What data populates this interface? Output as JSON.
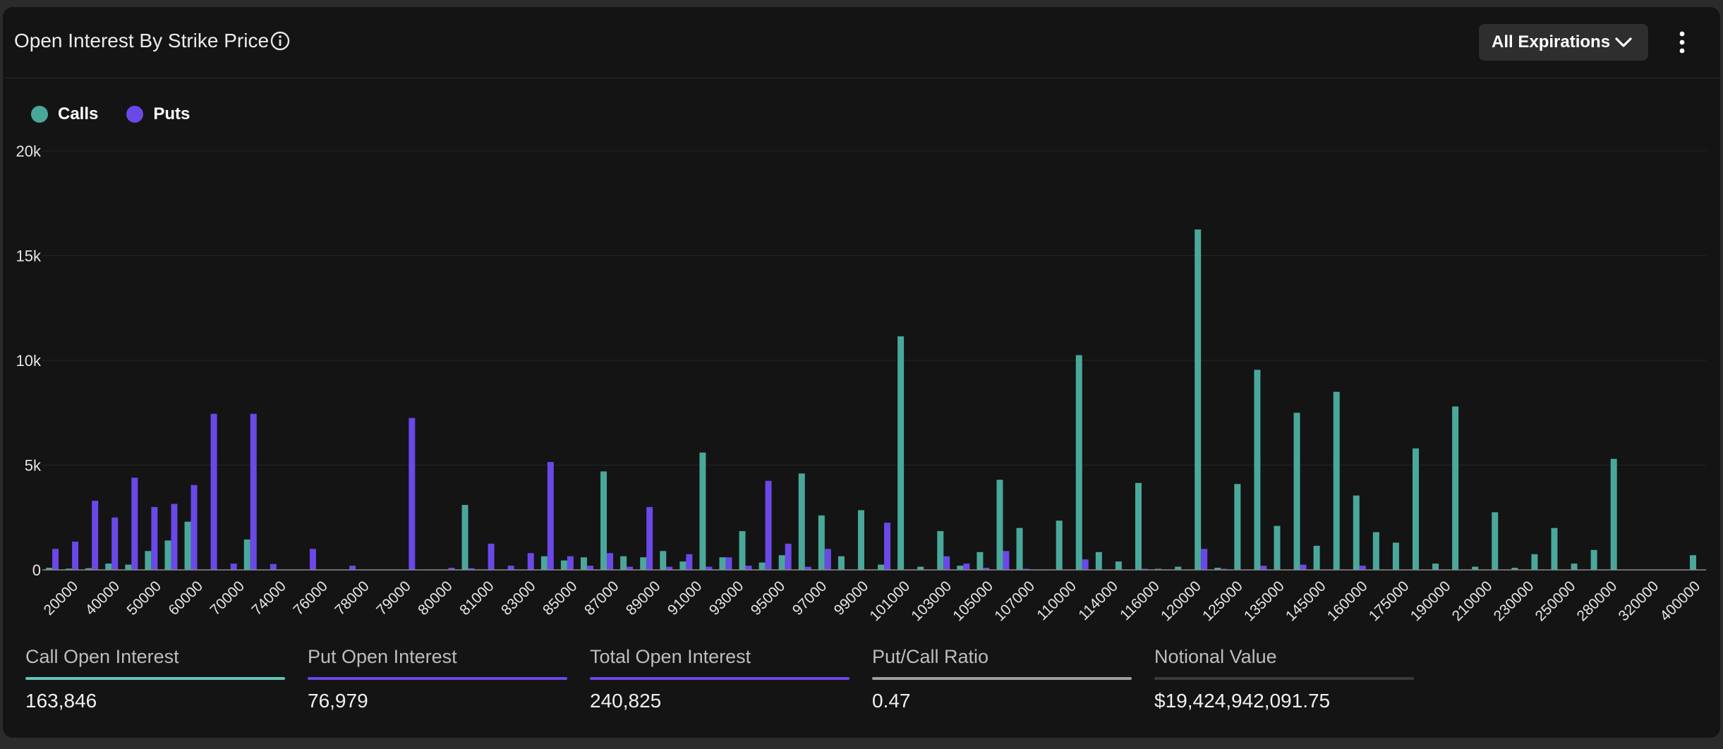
{
  "header": {
    "title": "Open Interest By Strike Price",
    "expiration_label": "All Expirations"
  },
  "colors": {
    "calls": "#4aa89b",
    "puts": "#6b48e8",
    "grid": "#262626",
    "axis_text": "#e6e6e6"
  },
  "legend": [
    {
      "label": "Calls",
      "color": "#4aa89b"
    },
    {
      "label": "Puts",
      "color": "#6b48e8"
    }
  ],
  "chart_data": {
    "type": "bar",
    "ylim": [
      0,
      20000
    ],
    "yticks": [
      0,
      5000,
      10000,
      15000,
      20000
    ],
    "ytick_labels": [
      "0",
      "5k",
      "10k",
      "15k",
      "20k"
    ],
    "grid": true,
    "legend_position": "top-left",
    "x_tick_labels": [
      "20000",
      "40000",
      "50000",
      "60000",
      "70000",
      "74000",
      "76000",
      "78000",
      "79000",
      "80000",
      "81000",
      "83000",
      "85000",
      "87000",
      "89000",
      "91000",
      "93000",
      "95000",
      "97000",
      "99000",
      "101000",
      "103000",
      "105000",
      "107000",
      "110000",
      "114000",
      "116000",
      "120000",
      "125000",
      "135000",
      "145000",
      "160000",
      "175000",
      "190000",
      "210000",
      "230000",
      "250000",
      "280000",
      "320000",
      "400000"
    ],
    "series": [
      {
        "name": "Calls",
        "values": [
          100,
          60,
          80,
          300,
          250,
          900,
          1400,
          2300,
          0,
          0,
          1450,
          0,
          0,
          0,
          0,
          0,
          0,
          0,
          0,
          0,
          0,
          3100,
          0,
          0,
          0,
          650,
          450,
          600,
          4700,
          650,
          600,
          900,
          400,
          5600,
          600,
          1850,
          350,
          700,
          4600,
          2600,
          650,
          2850,
          250,
          11150,
          150,
          1850,
          200,
          850,
          4300,
          2000,
          0,
          2350,
          10250,
          850,
          400,
          4150,
          50,
          150,
          16250,
          100,
          4100,
          9550,
          2100,
          7500,
          1150,
          8500,
          3550,
          1800,
          1300,
          5800,
          300,
          7800,
          150,
          2750,
          100,
          750,
          2000,
          300,
          950,
          5300,
          0,
          0,
          0,
          700
        ]
      },
      {
        "name": "Puts",
        "values": [
          1000,
          1350,
          3300,
          2500,
          4400,
          3000,
          3150,
          4050,
          7450,
          300,
          7450,
          280,
          0,
          1000,
          0,
          200,
          0,
          0,
          7250,
          0,
          100,
          80,
          1250,
          200,
          800,
          5150,
          650,
          200,
          800,
          150,
          3000,
          150,
          750,
          150,
          600,
          200,
          4250,
          1250,
          150,
          1000,
          0,
          0,
          2250,
          0,
          0,
          650,
          300,
          100,
          900,
          50,
          0,
          0,
          500,
          0,
          0,
          50,
          0,
          0,
          1000,
          50,
          0,
          200,
          0,
          250,
          0,
          0,
          200,
          0,
          0,
          0,
          0,
          0,
          0,
          0,
          0,
          0,
          0,
          0,
          0,
          0,
          0,
          0,
          0,
          0
        ]
      }
    ]
  },
  "stats": [
    {
      "label": "Call Open Interest",
      "value": "163,846",
      "color": "#5ec7b8"
    },
    {
      "label": "Put Open Interest",
      "value": "76,979",
      "color": "#6b48e8"
    },
    {
      "label": "Total Open Interest",
      "value": "240,825",
      "color": "#6b48e8"
    },
    {
      "label": "Put/Call Ratio",
      "value": "0.47",
      "color": "#9e9e9e"
    },
    {
      "label": "Notional Value",
      "value": "$19,424,942,091.75",
      "color": "#3a3a3a"
    }
  ]
}
